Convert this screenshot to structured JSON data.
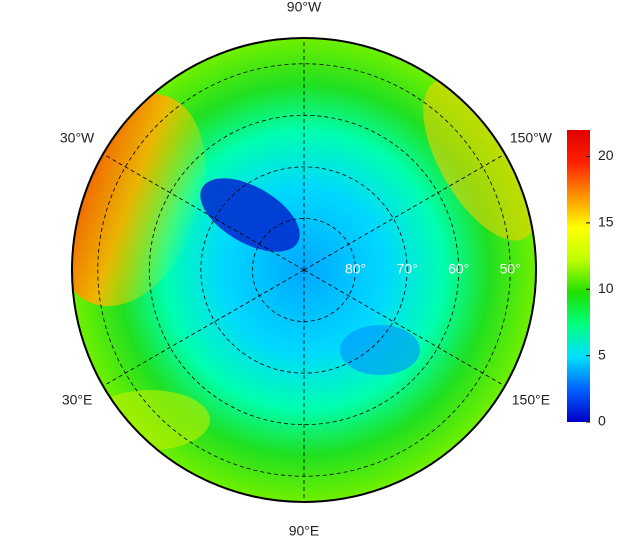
{
  "map": {
    "projection": "north-polar-stereographic",
    "lat_range": [
      90,
      45
    ],
    "meridians": [
      {
        "value": -90,
        "label": "90°W"
      },
      {
        "value": -30,
        "label": "30°W"
      },
      {
        "value": -150,
        "label": "150°W"
      },
      {
        "value": 30,
        "label": "30°E"
      },
      {
        "value": 150,
        "label": "150°E"
      },
      {
        "value": 90,
        "label": "90°E"
      }
    ],
    "parallels": [
      {
        "value": 80,
        "label": "80°"
      },
      {
        "value": 70,
        "label": "70°"
      },
      {
        "value": 60,
        "label": "60°"
      },
      {
        "value": 50,
        "label": "50°"
      }
    ],
    "colorbar": {
      "lim": [
        0,
        22
      ],
      "ticks": [
        0,
        5,
        10,
        15,
        20
      ],
      "colors": [
        "#0000c8",
        "#0060ff",
        "#00e0ff",
        "#00ff80",
        "#20e000",
        "#c0ff00",
        "#ffff00",
        "#ff9000",
        "#ff2000",
        "#e00000"
      ]
    }
  }
}
